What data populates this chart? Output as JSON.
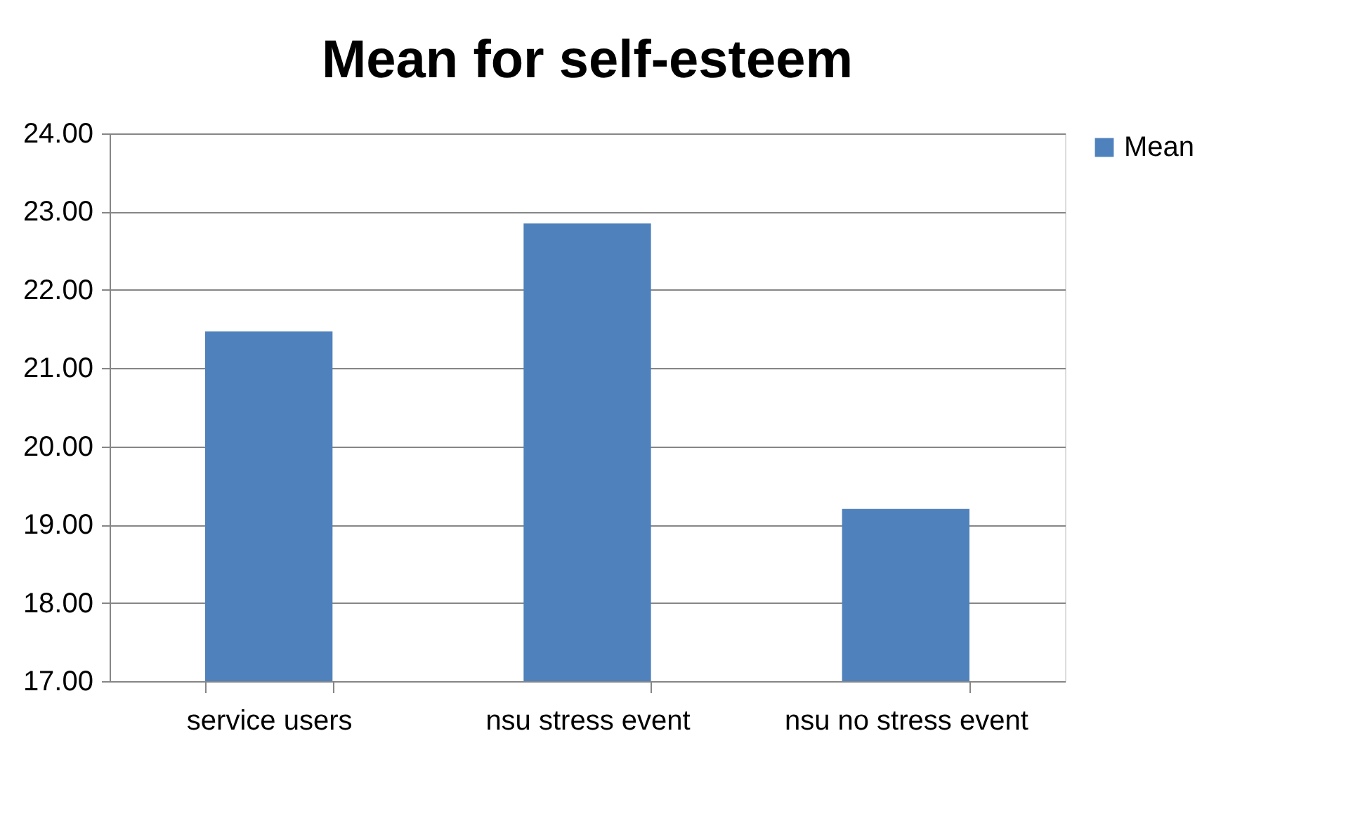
{
  "chart_data": {
    "type": "bar",
    "title": "Mean for self-esteem",
    "categories": [
      "service users",
      "nsu stress event",
      "nsu no stress event"
    ],
    "series": [
      {
        "name": "Mean",
        "color": "#4f81bd",
        "values": [
          21.47,
          22.85,
          19.2
        ]
      }
    ],
    "ylim": [
      17,
      24
    ],
    "yticks": [
      {
        "value": 17,
        "label": "17.00"
      },
      {
        "value": 18,
        "label": "18.00"
      },
      {
        "value": 19,
        "label": "19.00"
      },
      {
        "value": 20,
        "label": "20.00"
      },
      {
        "value": 21,
        "label": "21.00"
      },
      {
        "value": 22,
        "label": "22.00"
      },
      {
        "value": 23,
        "label": "23.00"
      },
      {
        "value": 24,
        "label": "24.00"
      }
    ],
    "grid": "y",
    "legend": "right"
  }
}
